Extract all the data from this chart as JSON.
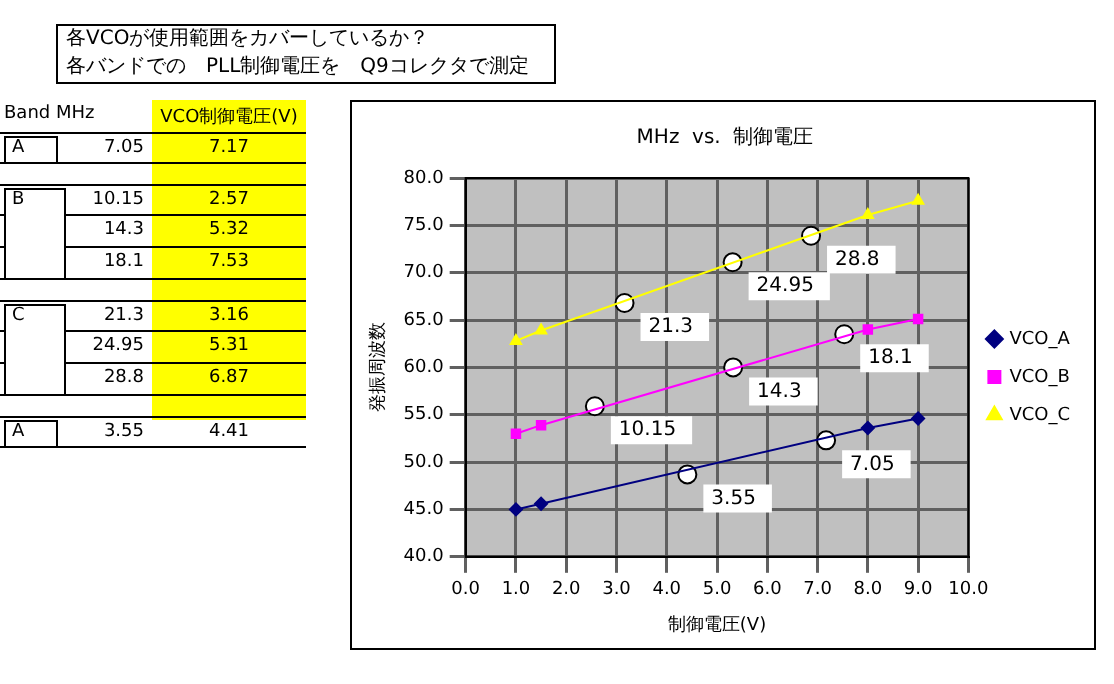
{
  "chart_data": {
    "type": "line",
    "title": "MHz  vs.  制御電圧",
    "xlabel": "制御電圧(V)",
    "ylabel": "発振周波数",
    "xlim": [
      0,
      10
    ],
    "xticks": [
      {
        "value": 0,
        "label": "0.0"
      },
      {
        "value": 1,
        "label": "1.0"
      },
      {
        "value": 2,
        "label": "2.0"
      },
      {
        "value": 3,
        "label": "3.0"
      },
      {
        "value": 4,
        "label": "4.0"
      },
      {
        "value": 5,
        "label": "5.0"
      },
      {
        "value": 6,
        "label": "6.0"
      },
      {
        "value": 7,
        "label": "7.0"
      },
      {
        "value": 8,
        "label": "8.0"
      },
      {
        "value": 9,
        "label": "9.0"
      },
      {
        "value": 10,
        "label": "10.0"
      }
    ],
    "ylim": [
      40,
      80
    ],
    "yticks": [
      {
        "value": 40,
        "label": "40.0"
      },
      {
        "value": 45,
        "label": "45.0"
      },
      {
        "value": 50,
        "label": "50.0"
      },
      {
        "value": 55,
        "label": "55.0"
      },
      {
        "value": 60,
        "label": "60.0"
      },
      {
        "value": 65,
        "label": "65.0"
      },
      {
        "value": 70,
        "label": "70.0"
      },
      {
        "value": 75,
        "label": "75.0"
      },
      {
        "value": 80,
        "label": "80.0"
      }
    ],
    "grid": true,
    "legend": "right",
    "series": [
      {
        "name": "VCO_A",
        "type": "line",
        "color": "#000080",
        "marker": "diamond",
        "x": [
          1.0,
          1.5,
          8.0,
          9.0
        ],
        "values": [
          45.0,
          45.6,
          53.6,
          54.6
        ]
      },
      {
        "name": "VCO_B",
        "type": "line",
        "color": "#ff00ff",
        "marker": "square",
        "x": [
          1.0,
          1.5,
          8.0,
          9.0
        ],
        "values": [
          53.0,
          53.9,
          64.0,
          65.1
        ]
      },
      {
        "name": "VCO_C",
        "type": "line",
        "color": "#ffff00",
        "marker": "triangle",
        "x": [
          1.0,
          1.5,
          8.0,
          9.0
        ],
        "values": [
          62.8,
          63.9,
          76.1,
          77.6
        ]
      },
      {
        "type": "scatter",
        "color": "#ffffff",
        "marker": "circle",
        "x": [
          4.41,
          7.17,
          2.57,
          5.32,
          7.53,
          3.16,
          5.31,
          6.87
        ],
        "values": [
          48.7,
          52.3,
          55.9,
          60.0,
          63.5,
          66.8,
          71.1,
          73.9
        ]
      }
    ],
    "annotations": [
      "各VCOが使用範囲をカバーしているか？",
      "各バンドでの　PLL制御電圧を　Q9コレクタで測定",
      "Band MHz",
      "VCO制御電圧(V)",
      "A",
      "7.05",
      "7.17",
      "B",
      "10.15",
      "2.57",
      "14.3",
      "5.32",
      "18.1",
      "7.53",
      "C",
      "21.3",
      "3.16",
      "24.95",
      "5.31",
      "28.8",
      "6.87",
      "A",
      "3.55",
      "4.41",
      {
        "text": "3.55",
        "x": 4.41,
        "y": 48.7
      },
      {
        "text": "7.05",
        "x": 7.17,
        "y": 52.3
      },
      {
        "text": "10.15",
        "x": 2.57,
        "y": 55.9
      },
      {
        "text": "14.3",
        "x": 5.32,
        "y": 60.0
      },
      {
        "text": "18.1",
        "x": 7.53,
        "y": 63.5
      },
      {
        "text": "21.3",
        "x": 3.16,
        "y": 66.8
      },
      {
        "text": "24.95",
        "x": 5.31,
        "y": 71.1
      },
      {
        "text": "28.8",
        "x": 6.87,
        "y": 73.9
      }
    ]
  }
}
